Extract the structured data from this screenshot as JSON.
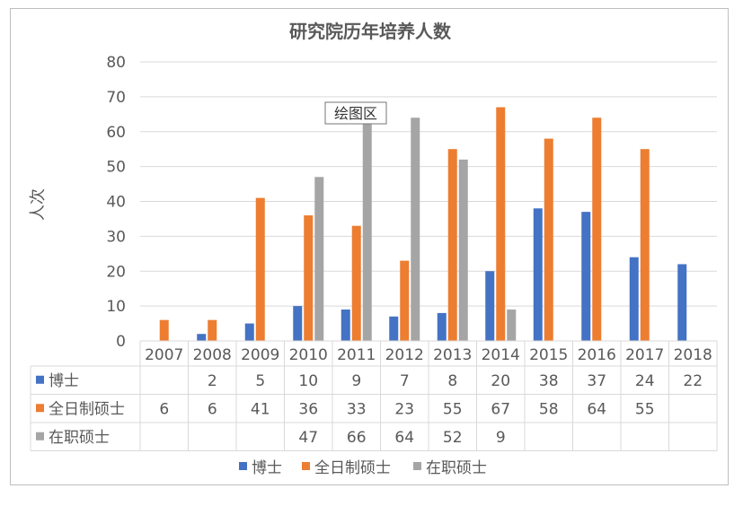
{
  "chart_data": {
    "type": "bar",
    "title": "研究院历年培养人数",
    "ylabel": "人次",
    "ylim": [
      0,
      80
    ],
    "yticks": [
      0,
      10,
      20,
      30,
      40,
      50,
      60,
      70,
      80
    ],
    "categories": [
      "2007",
      "2008",
      "2009",
      "2010",
      "2011",
      "2012",
      "2013",
      "2014",
      "2015",
      "2016",
      "2017",
      "2018"
    ],
    "series": [
      {
        "name": "博士",
        "color": "#4472C4",
        "values": [
          null,
          2,
          5,
          10,
          9,
          7,
          8,
          20,
          38,
          37,
          24,
          22
        ]
      },
      {
        "name": "全日制硕士",
        "color": "#ED7D31",
        "values": [
          6,
          6,
          41,
          36,
          33,
          23,
          55,
          67,
          58,
          64,
          55,
          null
        ]
      },
      {
        "name": "在职硕士",
        "color": "#A5A5A5",
        "values": [
          null,
          null,
          null,
          47,
          66,
          64,
          52,
          9,
          null,
          null,
          null,
          null
        ]
      }
    ],
    "grid": true,
    "legend_position": "bottom",
    "data_table": true,
    "tooltip": "绘图区"
  }
}
